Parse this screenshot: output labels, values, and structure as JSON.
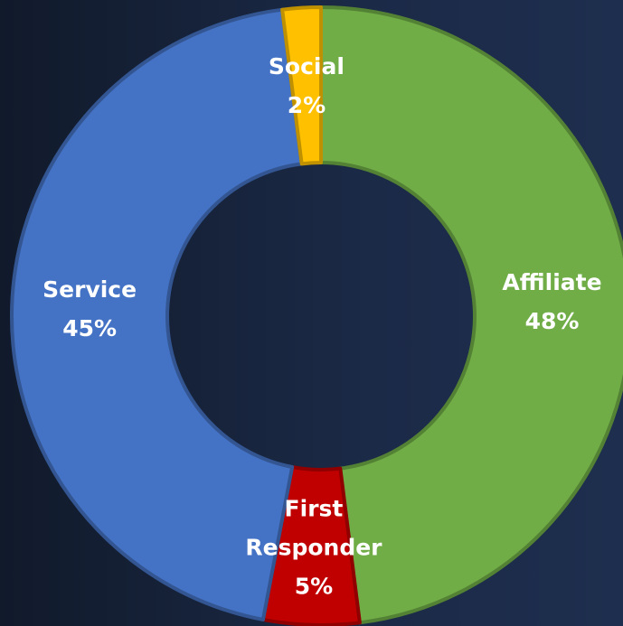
{
  "chart_data": {
    "type": "donut",
    "categories": [
      "Affiliate",
      "First Responder",
      "Service",
      "Social"
    ],
    "values": [
      48,
      5,
      45,
      2
    ],
    "value_labels": [
      "48%",
      "5%",
      "45%",
      "2%"
    ],
    "colors": [
      "#70ad47",
      "#c00000",
      "#4472c4",
      "#ffc000"
    ]
  }
}
